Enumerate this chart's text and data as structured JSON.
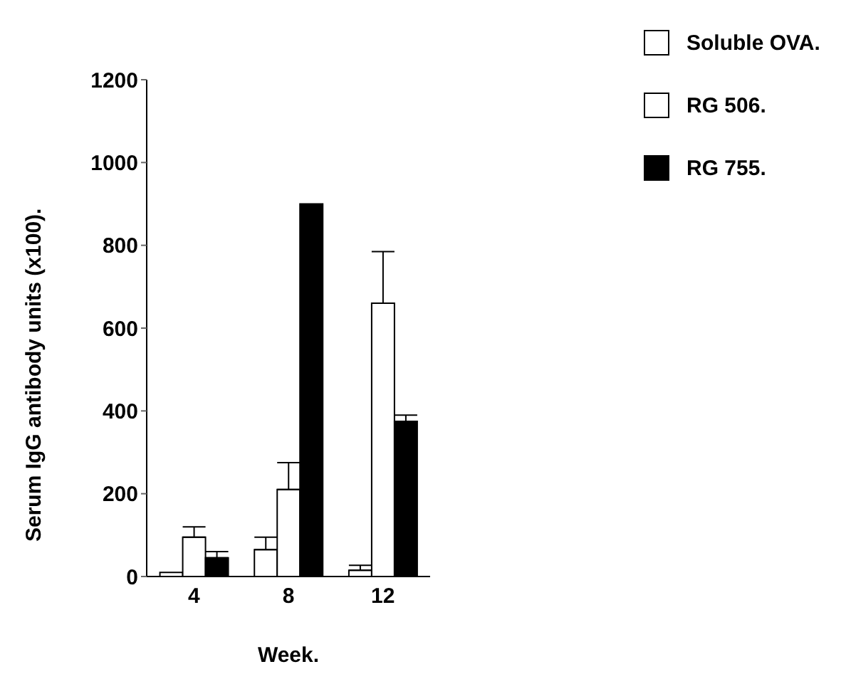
{
  "chart_data": {
    "type": "bar",
    "xlabel": "Week.",
    "ylabel": "Serum  IgG  antibody  units  (x100).",
    "categories": [
      "4",
      "8",
      "12"
    ],
    "series": [
      {
        "name": "Soluble OVA.",
        "color": "#ffffff",
        "values": [
          10,
          65,
          15
        ],
        "errors": [
          null,
          30,
          12
        ]
      },
      {
        "name": "RG 506.",
        "color": "#ffffff",
        "values": [
          95,
          210,
          660
        ],
        "errors": [
          25,
          65,
          125
        ]
      },
      {
        "name": "RG 755.",
        "color": "#000000",
        "values": [
          45,
          900,
          375
        ],
        "errors": [
          15,
          null,
          15
        ]
      }
    ],
    "ylim": [
      0,
      1200
    ],
    "yticks": [
      0,
      200,
      400,
      600,
      800,
      1000,
      1200
    ],
    "grid": false,
    "legend": "top right"
  }
}
